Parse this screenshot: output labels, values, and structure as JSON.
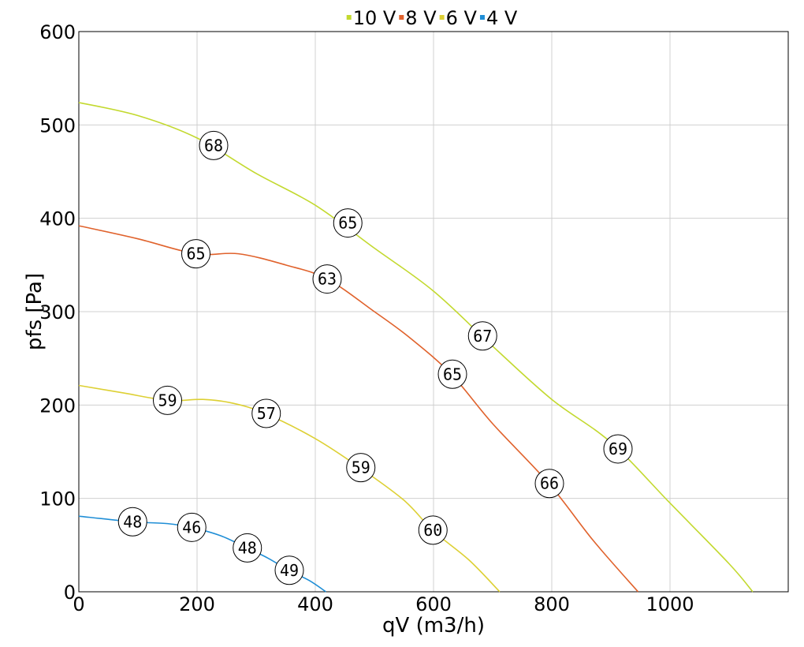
{
  "chart_data": {
    "type": "line",
    "title": "",
    "xlabel": "qV (m3/h)",
    "ylabel": "pfs [Pa]",
    "xlim": [
      0,
      1200
    ],
    "ylim": [
      0,
      600
    ],
    "xticks": [
      0,
      200,
      400,
      600,
      800,
      1000
    ],
    "yticks": [
      0,
      100,
      200,
      300,
      400,
      500,
      600
    ],
    "grid": true,
    "legend_position": "top-center",
    "series": [
      {
        "name": "10 V",
        "color": "#c3d92f",
        "points": [
          [
            0,
            524
          ],
          [
            100,
            510
          ],
          [
            200,
            486
          ],
          [
            300,
            448
          ],
          [
            400,
            414
          ],
          [
            500,
            368
          ],
          [
            600,
            322
          ],
          [
            700,
            263
          ],
          [
            800,
            206
          ],
          [
            900,
            160
          ],
          [
            1000,
            95
          ],
          [
            1100,
            30
          ],
          [
            1140,
            0
          ]
        ],
        "markers": [
          {
            "x": 228,
            "y": 478,
            "label": "68"
          },
          {
            "x": 455,
            "y": 395,
            "label": "65"
          },
          {
            "x": 683,
            "y": 274,
            "label": "67"
          },
          {
            "x": 912,
            "y": 153,
            "label": "69"
          }
        ]
      },
      {
        "name": "8 V",
        "color": "#e0622c",
        "points": [
          [
            0,
            392
          ],
          [
            100,
            378
          ],
          [
            198,
            362
          ],
          [
            270,
            362
          ],
          [
            350,
            350
          ],
          [
            420,
            335
          ],
          [
            500,
            300
          ],
          [
            560,
            272
          ],
          [
            630,
            233
          ],
          [
            700,
            180
          ],
          [
            795,
            116
          ],
          [
            870,
            55
          ],
          [
            946,
            0
          ]
        ],
        "markers": [
          {
            "x": 198,
            "y": 362,
            "label": "65"
          },
          {
            "x": 420,
            "y": 335,
            "label": "63"
          },
          {
            "x": 632,
            "y": 233,
            "label": "65"
          },
          {
            "x": 796,
            "y": 116,
            "label": "66"
          }
        ]
      },
      {
        "name": "6 V",
        "color": "#ddd034",
        "points": [
          [
            0,
            221
          ],
          [
            75,
            213
          ],
          [
            150,
            205
          ],
          [
            210,
            206
          ],
          [
            260,
            202
          ],
          [
            315,
            191
          ],
          [
            400,
            164
          ],
          [
            475,
            133
          ],
          [
            550,
            98
          ],
          [
            600,
            65
          ],
          [
            660,
            34
          ],
          [
            712,
            0
          ]
        ],
        "markers": [
          {
            "x": 150,
            "y": 205,
            "label": "59"
          },
          {
            "x": 317,
            "y": 191,
            "label": "57"
          },
          {
            "x": 477,
            "y": 133,
            "label": "59"
          },
          {
            "x": 599,
            "y": 66,
            "label": "60"
          }
        ]
      },
      {
        "name": "4 V",
        "color": "#1f8ed6",
        "points": [
          [
            0,
            81
          ],
          [
            90,
            75
          ],
          [
            150,
            73
          ],
          [
            190,
            69
          ],
          [
            240,
            60
          ],
          [
            284,
            47
          ],
          [
            320,
            36
          ],
          [
            355,
            23
          ],
          [
            390,
            12
          ],
          [
            418,
            0
          ]
        ],
        "markers": [
          {
            "x": 91,
            "y": 75,
            "label": "48"
          },
          {
            "x": 191,
            "y": 69,
            "label": "46"
          },
          {
            "x": 285,
            "y": 47,
            "label": "48"
          },
          {
            "x": 356,
            "y": 23,
            "label": "49"
          }
        ]
      }
    ]
  }
}
